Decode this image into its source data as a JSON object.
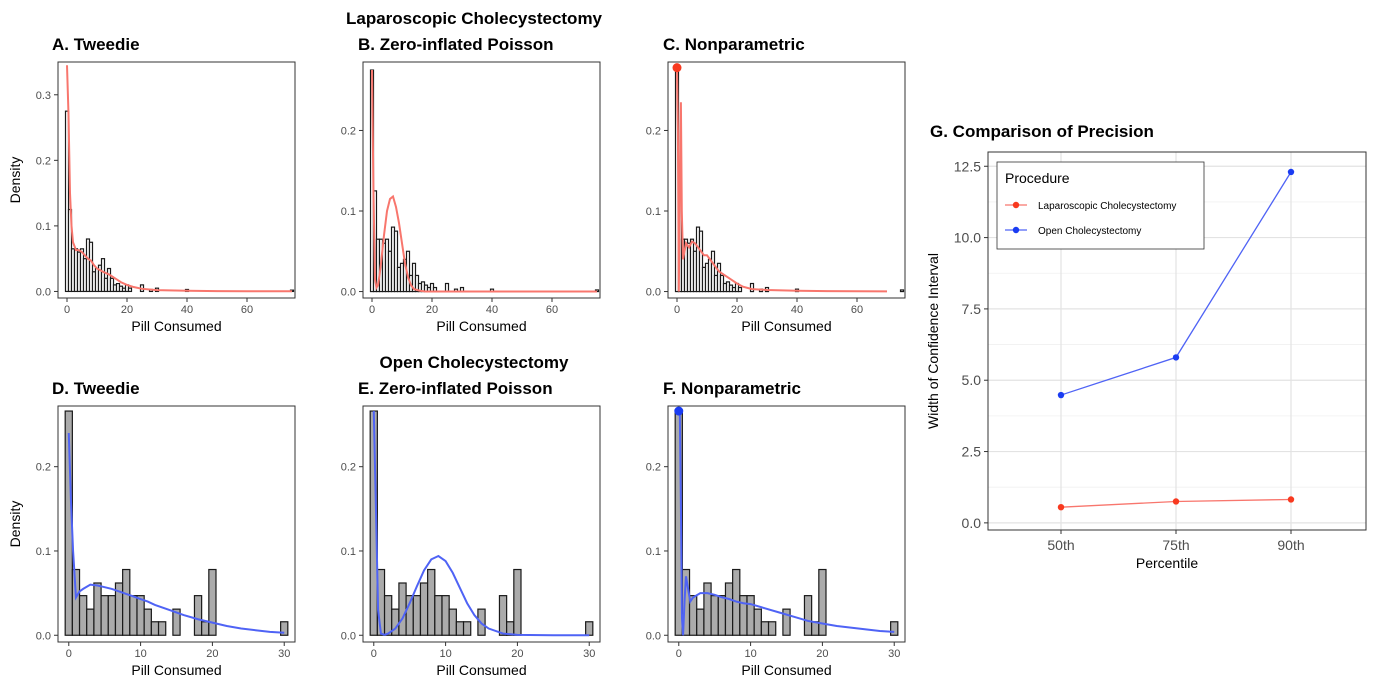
{
  "figure": {
    "top_title": "Laparoscopic Cholecystectomy",
    "bottom_title": "Open Cholecystectomy"
  },
  "colors": {
    "lap": "#f8766d",
    "open": "#4f63f5",
    "lap_point": "#f8391f",
    "open_point": "#1a3cf2",
    "bar_lap": "#ffffff",
    "bar_open": "#ababab"
  },
  "chart_data": [
    {
      "id": "A",
      "type": "bar",
      "title": "A. Tweedie",
      "xlabel": "Pill Consumed",
      "ylabel": "Density",
      "xlim": [
        -3,
        76
      ],
      "ylim": [
        -0.01,
        0.35
      ],
      "xticks": [
        0,
        20,
        40,
        60
      ],
      "xtick_labels": [
        "0",
        "20",
        "40",
        "60"
      ],
      "yticks": [
        0,
        0.1,
        0.2,
        0.3
      ],
      "ytick_labels": [
        "0.0",
        "0.1",
        "0.2",
        "0.3"
      ],
      "binwidth": 1,
      "bars": [
        [
          0,
          0.275
        ],
        [
          1,
          0.125
        ],
        [
          2,
          0.065
        ],
        [
          3,
          0.065
        ],
        [
          4,
          0.06
        ],
        [
          5,
          0.065
        ],
        [
          6,
          0.05
        ],
        [
          7,
          0.08
        ],
        [
          8,
          0.075
        ],
        [
          9,
          0.03
        ],
        [
          10,
          0.035
        ],
        [
          11,
          0.04
        ],
        [
          12,
          0.05
        ],
        [
          13,
          0.02
        ],
        [
          14,
          0.035
        ],
        [
          15,
          0.02
        ],
        [
          16,
          0.01
        ],
        [
          17,
          0.012
        ],
        [
          18,
          0.008
        ],
        [
          19,
          0.005
        ],
        [
          20,
          0.01
        ],
        [
          21,
          0.005
        ],
        [
          25,
          0.01
        ],
        [
          28,
          0.003
        ],
        [
          30,
          0.005
        ],
        [
          40,
          0.003
        ],
        [
          75,
          0.002
        ]
      ],
      "curve": {
        "x": [
          0,
          0.5,
          1,
          1.5,
          2,
          3,
          4,
          5,
          6,
          7,
          8,
          9,
          10,
          12,
          14,
          16,
          18,
          20,
          22,
          25,
          30,
          40,
          50,
          60,
          75
        ],
        "y": [
          0.345,
          0.27,
          0.15,
          0.1,
          0.075,
          0.063,
          0.063,
          0.06,
          0.055,
          0.05,
          0.047,
          0.04,
          0.035,
          0.03,
          0.026,
          0.02,
          0.014,
          0.01,
          0.007,
          0.004,
          0.002,
          0.001,
          0.0005,
          0.0003,
          0.0002
        ]
      }
    },
    {
      "id": "B",
      "type": "bar",
      "title": "B. Zero-inflated Poisson",
      "xlabel": "Pill Consumed",
      "ylabel": "",
      "xlim": [
        -3,
        76
      ],
      "ylim": [
        -0.008,
        0.285
      ],
      "xticks": [
        0,
        20,
        40,
        60
      ],
      "xtick_labels": [
        "0",
        "20",
        "40",
        "60"
      ],
      "yticks": [
        0,
        0.1,
        0.2
      ],
      "ytick_labels": [
        "0.0",
        "0.1",
        "0.2"
      ],
      "binwidth": 1,
      "bars": [
        [
          0,
          0.275
        ],
        [
          1,
          0.125
        ],
        [
          2,
          0.065
        ],
        [
          3,
          0.065
        ],
        [
          4,
          0.06
        ],
        [
          5,
          0.065
        ],
        [
          6,
          0.05
        ],
        [
          7,
          0.08
        ],
        [
          8,
          0.075
        ],
        [
          9,
          0.03
        ],
        [
          10,
          0.035
        ],
        [
          11,
          0.04
        ],
        [
          12,
          0.05
        ],
        [
          13,
          0.02
        ],
        [
          14,
          0.035
        ],
        [
          15,
          0.02
        ],
        [
          16,
          0.01
        ],
        [
          17,
          0.012
        ],
        [
          18,
          0.008
        ],
        [
          19,
          0.005
        ],
        [
          20,
          0.01
        ],
        [
          21,
          0.005
        ],
        [
          25,
          0.01
        ],
        [
          28,
          0.003
        ],
        [
          30,
          0.005
        ],
        [
          40,
          0.003
        ],
        [
          75,
          0.002
        ]
      ],
      "curve": {
        "x": [
          0,
          0.5,
          1,
          1.5,
          2,
          2.5,
          3,
          4,
          5,
          6,
          7,
          8,
          9,
          10,
          11,
          12,
          13,
          14,
          16,
          18,
          20,
          30,
          50,
          75
        ],
        "y": [
          0.275,
          0.12,
          0.015,
          0.005,
          0.008,
          0.02,
          0.035,
          0.07,
          0.1,
          0.115,
          0.118,
          0.105,
          0.085,
          0.06,
          0.035,
          0.018,
          0.008,
          0.003,
          0.001,
          0.0,
          0.0,
          0.0,
          0.0,
          0.0
        ]
      }
    },
    {
      "id": "C",
      "type": "bar",
      "title": "C. Nonparametric",
      "xlabel": "Pill Consumed",
      "ylabel": "",
      "xlim": [
        -3,
        76
      ],
      "ylim": [
        -0.008,
        0.285
      ],
      "xticks": [
        0,
        20,
        40,
        60
      ],
      "xtick_labels": [
        "0",
        "20",
        "40",
        "60"
      ],
      "yticks": [
        0,
        0.1,
        0.2
      ],
      "ytick_labels": [
        "0.0",
        "0.1",
        "0.2"
      ],
      "binwidth": 1,
      "bars": [
        [
          0,
          0.275
        ],
        [
          1,
          0.125
        ],
        [
          2,
          0.065
        ],
        [
          3,
          0.065
        ],
        [
          4,
          0.06
        ],
        [
          5,
          0.065
        ],
        [
          6,
          0.05
        ],
        [
          7,
          0.08
        ],
        [
          8,
          0.075
        ],
        [
          9,
          0.03
        ],
        [
          10,
          0.035
        ],
        [
          11,
          0.04
        ],
        [
          12,
          0.05
        ],
        [
          13,
          0.02
        ],
        [
          14,
          0.035
        ],
        [
          15,
          0.02
        ],
        [
          16,
          0.01
        ],
        [
          17,
          0.012
        ],
        [
          18,
          0.008
        ],
        [
          19,
          0.005
        ],
        [
          20,
          0.01
        ],
        [
          21,
          0.005
        ],
        [
          25,
          0.01
        ],
        [
          28,
          0.003
        ],
        [
          30,
          0.005
        ],
        [
          40,
          0.003
        ],
        [
          75,
          0.002
        ]
      ],
      "curve": {
        "x": [
          0,
          0.3,
          0.6,
          1,
          1.3,
          1.6,
          2,
          2.5,
          3,
          4,
          5,
          6,
          7,
          8,
          9,
          10,
          12,
          14,
          16,
          18,
          20,
          22,
          25,
          30,
          40,
          50,
          60,
          70
        ],
        "y": [
          0.275,
          0.2,
          0.0,
          0.15,
          0.235,
          0.1,
          0.04,
          0.05,
          0.06,
          0.055,
          0.062,
          0.06,
          0.055,
          0.05,
          0.045,
          0.045,
          0.035,
          0.025,
          0.02,
          0.015,
          0.01,
          0.006,
          0.003,
          0.002,
          0.001,
          0.0005,
          0.0003,
          0.0002
        ]
      },
      "point": [
        0,
        0.278
      ]
    },
    {
      "id": "D",
      "type": "bar",
      "title": "D. Tweedie",
      "xlabel": "Pill Consumed",
      "ylabel": "Density",
      "xlim": [
        -1.5,
        31.5
      ],
      "ylim": [
        -0.008,
        0.272
      ],
      "xticks": [
        0,
        10,
        20,
        30
      ],
      "xtick_labels": [
        "0",
        "10",
        "20",
        "30"
      ],
      "yticks": [
        0,
        0.1,
        0.2
      ],
      "ytick_labels": [
        "0.0",
        "0.1",
        "0.2"
      ],
      "binwidth": 1,
      "bars": [
        [
          0,
          0.266
        ],
        [
          1,
          0.078
        ],
        [
          2,
          0.047
        ],
        [
          3,
          0.031
        ],
        [
          4,
          0.062
        ],
        [
          5,
          0.047
        ],
        [
          6,
          0.047
        ],
        [
          7,
          0.062
        ],
        [
          8,
          0.078
        ],
        [
          9,
          0.047
        ],
        [
          10,
          0.047
        ],
        [
          11,
          0.031
        ],
        [
          12,
          0.016
        ],
        [
          13,
          0.016
        ],
        [
          14,
          0.0
        ],
        [
          15,
          0.031
        ],
        [
          16,
          0.0
        ],
        [
          17,
          0.0
        ],
        [
          18,
          0.047
        ],
        [
          19,
          0.016
        ],
        [
          20,
          0.078
        ],
        [
          30,
          0.016
        ]
      ],
      "curve": {
        "x": [
          0,
          0.3,
          0.6,
          1,
          1.5,
          2,
          3,
          4,
          5,
          6,
          7,
          8,
          9,
          10,
          11,
          12,
          14,
          16,
          18,
          20,
          22,
          24,
          26,
          28,
          30
        ],
        "y": [
          0.24,
          0.16,
          0.1,
          0.045,
          0.052,
          0.055,
          0.06,
          0.059,
          0.057,
          0.055,
          0.052,
          0.049,
          0.046,
          0.043,
          0.04,
          0.036,
          0.03,
          0.024,
          0.019,
          0.015,
          0.011,
          0.008,
          0.006,
          0.004,
          0.003
        ]
      }
    },
    {
      "id": "E",
      "type": "bar",
      "title": "E. Zero-inflated Poisson",
      "xlabel": "Pill Consumed",
      "ylabel": "",
      "xlim": [
        -1.5,
        31.5
      ],
      "ylim": [
        -0.008,
        0.272
      ],
      "xticks": [
        0,
        10,
        20,
        30
      ],
      "xtick_labels": [
        "0",
        "10",
        "20",
        "30"
      ],
      "yticks": [
        0,
        0.1,
        0.2
      ],
      "ytick_labels": [
        "0.0",
        "0.1",
        "0.2"
      ],
      "binwidth": 1,
      "bars": [
        [
          0,
          0.266
        ],
        [
          1,
          0.078
        ],
        [
          2,
          0.047
        ],
        [
          3,
          0.031
        ],
        [
          4,
          0.062
        ],
        [
          5,
          0.047
        ],
        [
          6,
          0.047
        ],
        [
          7,
          0.062
        ],
        [
          8,
          0.078
        ],
        [
          9,
          0.047
        ],
        [
          10,
          0.047
        ],
        [
          11,
          0.031
        ],
        [
          12,
          0.016
        ],
        [
          13,
          0.016
        ],
        [
          14,
          0.0
        ],
        [
          15,
          0.031
        ],
        [
          16,
          0.0
        ],
        [
          17,
          0.0
        ],
        [
          18,
          0.047
        ],
        [
          19,
          0.016
        ],
        [
          20,
          0.078
        ],
        [
          30,
          0.016
        ]
      ],
      "curve": {
        "x": [
          0,
          0.3,
          0.6,
          1,
          1.5,
          2,
          3,
          4,
          5,
          6,
          7,
          8,
          9,
          10,
          11,
          12,
          13,
          14,
          15,
          16,
          18,
          20,
          25,
          30
        ],
        "y": [
          0.266,
          0.15,
          0.03,
          0.002,
          0.0005,
          0.002,
          0.008,
          0.02,
          0.038,
          0.058,
          0.077,
          0.09,
          0.094,
          0.088,
          0.074,
          0.056,
          0.038,
          0.024,
          0.014,
          0.008,
          0.002,
          0.0005,
          0.0,
          0.0
        ]
      }
    },
    {
      "id": "F",
      "type": "bar",
      "title": "F. Nonparametric",
      "xlabel": "Pill Consumed",
      "ylabel": "",
      "xlim": [
        -1.5,
        31.5
      ],
      "ylim": [
        -0.008,
        0.272
      ],
      "xticks": [
        0,
        10,
        20,
        30
      ],
      "xtick_labels": [
        "0",
        "10",
        "20",
        "30"
      ],
      "yticks": [
        0,
        0.1,
        0.2
      ],
      "ytick_labels": [
        "0.0",
        "0.1",
        "0.2"
      ],
      "binwidth": 1,
      "bars": [
        [
          0,
          0.266
        ],
        [
          1,
          0.078
        ],
        [
          2,
          0.047
        ],
        [
          3,
          0.031
        ],
        [
          4,
          0.062
        ],
        [
          5,
          0.047
        ],
        [
          6,
          0.047
        ],
        [
          7,
          0.062
        ],
        [
          8,
          0.078
        ],
        [
          9,
          0.047
        ],
        [
          10,
          0.047
        ],
        [
          11,
          0.031
        ],
        [
          12,
          0.016
        ],
        [
          13,
          0.016
        ],
        [
          14,
          0.0
        ],
        [
          15,
          0.031
        ],
        [
          16,
          0.0
        ],
        [
          17,
          0.0
        ],
        [
          18,
          0.047
        ],
        [
          19,
          0.016
        ],
        [
          20,
          0.078
        ],
        [
          30,
          0.016
        ]
      ],
      "curve": {
        "x": [
          0,
          0.15,
          0.3,
          0.45,
          0.6,
          0.8,
          1,
          1.3,
          1.6,
          2,
          3,
          4,
          5,
          6,
          7,
          8,
          9,
          10,
          12,
          14,
          16,
          18,
          20,
          22,
          25,
          28,
          30
        ],
        "y": [
          0.266,
          0.26,
          0.15,
          0.02,
          0.0,
          0.04,
          0.07,
          0.055,
          0.04,
          0.045,
          0.05,
          0.05,
          0.048,
          0.045,
          0.043,
          0.04,
          0.038,
          0.037,
          0.032,
          0.027,
          0.022,
          0.017,
          0.014,
          0.011,
          0.008,
          0.005,
          0.004
        ]
      },
      "point": [
        0,
        0.266
      ]
    },
    {
      "id": "G",
      "type": "line",
      "title": "G. Comparison of Precision",
      "xlabel": "Percentile",
      "ylabel": "Width of Confidence Interval",
      "categories": [
        "50th",
        "75th",
        "90th"
      ],
      "ylim": [
        0,
        12.5
      ],
      "yticks": [
        0,
        2.5,
        5,
        7.5,
        10,
        12.5
      ],
      "ytick_labels": [
        "0.0",
        "2.5",
        "5.0",
        "7.5",
        "10.0",
        "12.5"
      ],
      "grid": true,
      "legend": {
        "title": "Procedure",
        "position": "top-left",
        "entries": [
          "Laparoscopic Cholecystectomy",
          "Open Cholecystectomy"
        ]
      },
      "series": [
        {
          "name": "Laparoscopic Cholecystectomy",
          "values": [
            0.55,
            0.75,
            0.82
          ]
        },
        {
          "name": "Open Cholecystectomy",
          "values": [
            4.48,
            5.8,
            12.3
          ]
        }
      ]
    }
  ]
}
